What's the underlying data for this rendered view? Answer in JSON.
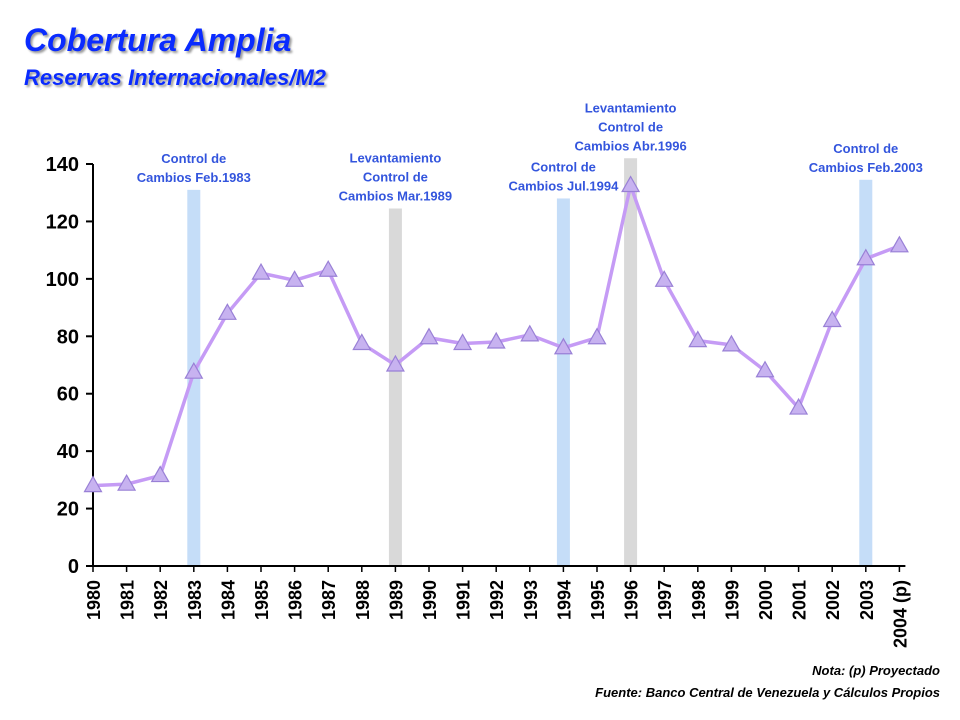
{
  "title": "Cobertura Amplia",
  "subtitle": "Reservas Internacionales/M2",
  "note": "Nota: (p) Proyectado",
  "source": "Fuente: Banco Central de Venezuela y Cálculos Propios",
  "colors": {
    "title": "#0A2BFF",
    "line": "#C59BF5",
    "marker_fill": "#C7B2F0",
    "marker_stroke": "#9980D6",
    "band_blue": "#C5DDF8",
    "band_gray": "#D9D9D9",
    "annotation": "#3355DD"
  },
  "chart_data": {
    "type": "line",
    "title": "Cobertura Amplia",
    "subtitle": "Reservas Internacionales/M2",
    "xlabel": "",
    "ylabel": "",
    "ylim": [
      0,
      140
    ],
    "yticks": [
      0,
      20,
      40,
      60,
      80,
      100,
      120,
      140
    ],
    "categories": [
      "1980",
      "1981",
      "1982",
      "1983",
      "1984",
      "1985",
      "1986",
      "1987",
      "1988",
      "1989",
      "1990",
      "1991",
      "1992",
      "1993",
      "1994",
      "1995",
      "1996",
      "1997",
      "1998",
      "1999",
      "2000",
      "2001",
      "2002",
      "2003",
      "2004 (p)"
    ],
    "series": [
      {
        "values": [
          28,
          28.5,
          31.5,
          67.5,
          88,
          102,
          99.5,
          103,
          77.5,
          70,
          79.5,
          77.5,
          78,
          80.5,
          76,
          79.5,
          132.5,
          99.5,
          78.5,
          77,
          68,
          55,
          85.5,
          107,
          111.5
        ],
        "marker": "triangle"
      }
    ],
    "annotations": [
      {
        "x": "1983",
        "band_top": 131,
        "color": "blue",
        "lines": [
          "Control de",
          "Cambios Feb.1983"
        ]
      },
      {
        "x": "1989",
        "band_top": 124.5,
        "color": "gray",
        "lines": [
          "Levantamiento",
          "Control de",
          "Cambios Mar.1989"
        ]
      },
      {
        "x": "1994",
        "band_top": 128,
        "color": "blue",
        "lines": [
          "Control de",
          "Cambios Jul.1994"
        ]
      },
      {
        "x": "1996",
        "band_top": 142,
        "color": "gray",
        "lines": [
          "Levantamiento",
          "Control de",
          "Cambios Abr.1996"
        ]
      },
      {
        "x": "2003",
        "band_top": 134.5,
        "color": "blue",
        "lines": [
          "Control de",
          "Cambios Feb.2003"
        ]
      }
    ],
    "grid": false,
    "legend": "none"
  }
}
